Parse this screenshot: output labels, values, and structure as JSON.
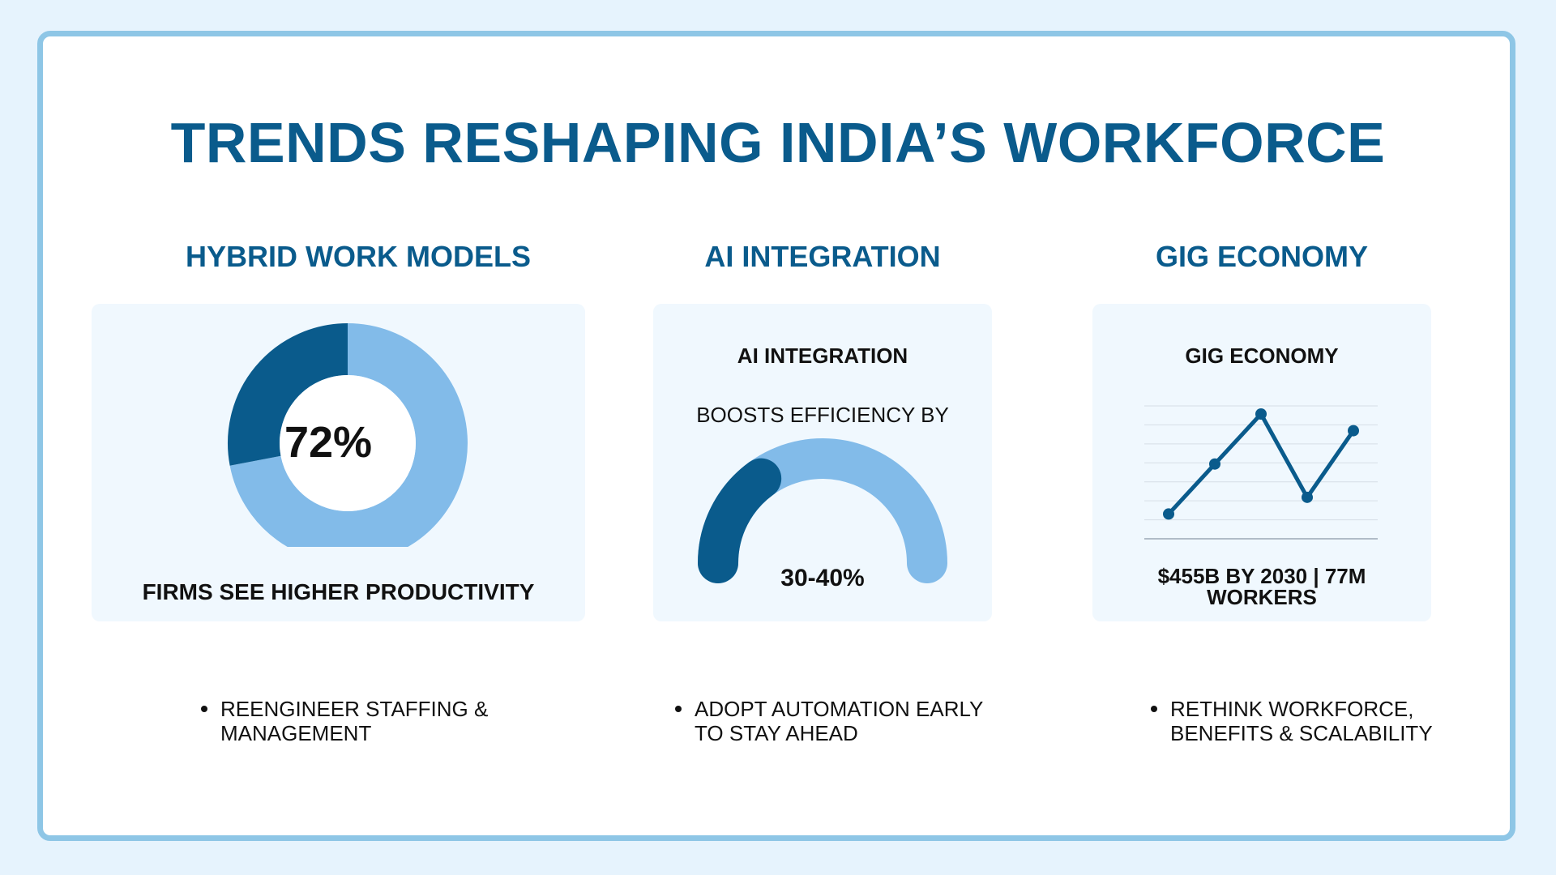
{
  "title": "TRENDS RESHAPING INDIA’S WORKFORCE",
  "colors": {
    "background": "#e6f3fd",
    "border": "#8ec6e6",
    "dark_blue": "#0a5b8c",
    "light_blue": "#82bbe9",
    "panel": "#f0f8fe"
  },
  "columns": [
    {
      "heading": "HYBRID WORK MODELS",
      "caption": "FIRMS SEE HIGHER PRODUCTIVITY",
      "center_value": "72%",
      "bullet": "REENGINEER STAFFING & MANAGEMENT"
    },
    {
      "heading": "AI INTEGRATION",
      "panel_title": "AI INTEGRATION",
      "subtitle": "BOOSTS EFFICIENCY BY",
      "value_label": "30-40%",
      "bullet": "ADOPT AUTOMATION EARLY TO STAY AHEAD"
    },
    {
      "heading": "GIG ECONOMY",
      "panel_title": "GIG ECONOMY",
      "caption": "$455B BY 2030 | 77M WORKERS",
      "bullet": "RETHINK WORKFORCE, BENEFITS & SCALABILITY"
    }
  ],
  "chart_data": [
    {
      "type": "pie",
      "style": "donut",
      "values": [
        72,
        28
      ],
      "center_label": "72%",
      "caption": "FIRMS SEE HIGHER PRODUCTIVITY",
      "colors": [
        "#82bbe9",
        "#0a5b8c"
      ]
    },
    {
      "type": "gauge",
      "title": "AI INTEGRATION",
      "subtitle": "BOOSTS EFFICIENCY BY",
      "value_fraction": 0.3,
      "label": "30-40%",
      "colors": [
        "#0a5b8c",
        "#82bbe9"
      ]
    },
    {
      "type": "line",
      "title": "GIG ECONOMY",
      "x": [
        1,
        2,
        3,
        4,
        5
      ],
      "values": [
        1,
        4,
        7,
        2,
        6
      ],
      "ylim": [
        0,
        7
      ],
      "grid": true,
      "caption": "$455B BY 2030 | 77M WORKERS",
      "colors": [
        "#0a5b8c"
      ]
    }
  ]
}
